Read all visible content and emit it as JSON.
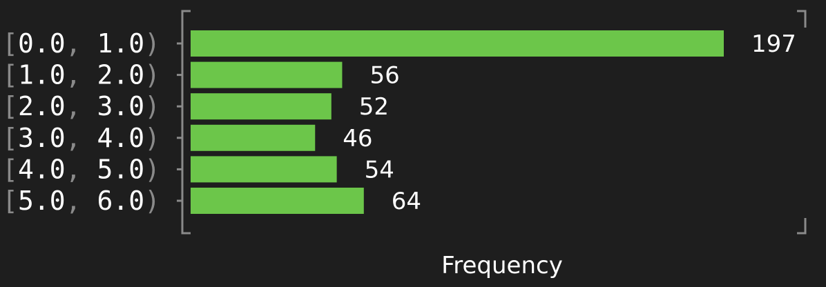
{
  "chart_data": {
    "type": "bar",
    "orientation": "horizontal",
    "categories": [
      {
        "open": "[",
        "lo": "0.0",
        "sep": ",",
        "hi": "1.0",
        "close": ")"
      },
      {
        "open": "[",
        "lo": "1.0",
        "sep": ",",
        "hi": "2.0",
        "close": ")"
      },
      {
        "open": "[",
        "lo": "2.0",
        "sep": ",",
        "hi": "3.0",
        "close": ")"
      },
      {
        "open": "[",
        "lo": "3.0",
        "sep": ",",
        "hi": "4.0",
        "close": ")"
      },
      {
        "open": "[",
        "lo": "4.0",
        "sep": ",",
        "hi": "5.0",
        "close": ")"
      },
      {
        "open": "[",
        "lo": "5.0",
        "sep": ",",
        "hi": "6.0",
        "close": ")"
      }
    ],
    "values": [
      197,
      56,
      52,
      46,
      54,
      64
    ],
    "value_labels": [
      "197",
      "56",
      "52",
      "46",
      "54",
      "64"
    ],
    "xlabel": "Frequency",
    "ylabel": "",
    "xlim": [
      0,
      197
    ],
    "grid": false,
    "colors": {
      "background": "#1e1e1e",
      "bar": "#6cc64a",
      "text": "#ffffff",
      "bracket": "#8a8a8a",
      "axis": "#8a8a8a"
    }
  }
}
